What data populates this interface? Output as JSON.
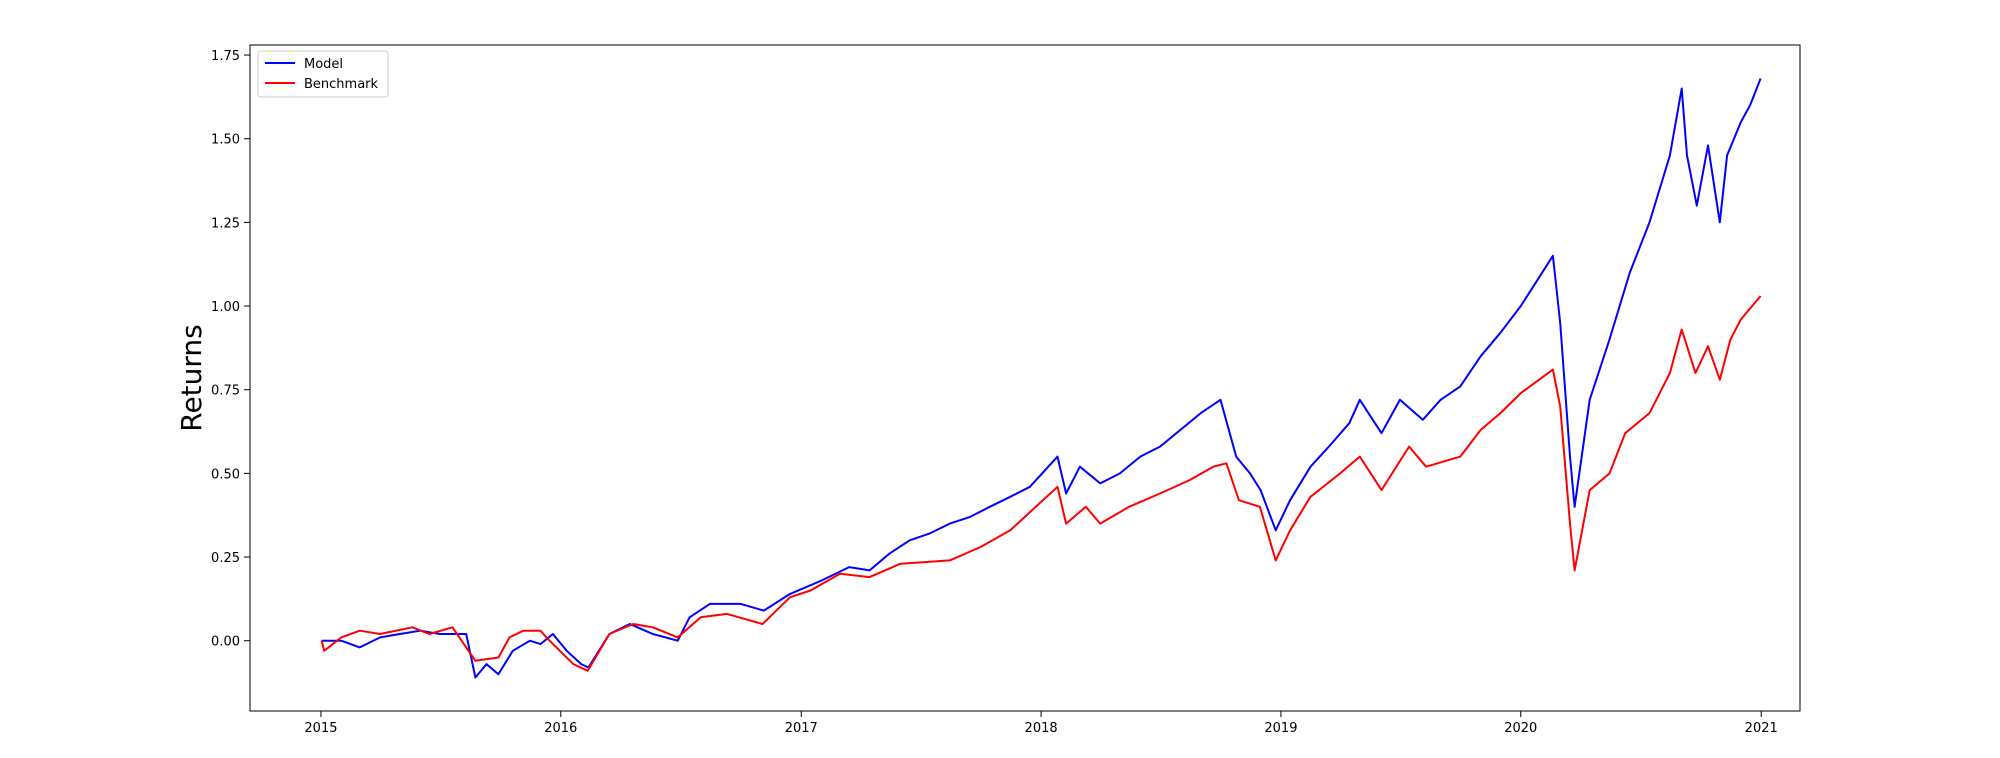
{
  "chart_data": {
    "type": "line",
    "title": "",
    "xlabel": "",
    "ylabel": "Returns",
    "xlim": [
      "2014-09-15",
      "2021-03-01"
    ],
    "ylim": [
      -0.21,
      1.78
    ],
    "x_ticks": [
      "2015",
      "2016",
      "2017",
      "2018",
      "2019",
      "2020",
      "2021"
    ],
    "y_ticks": [
      "0.00",
      "0.25",
      "0.50",
      "0.75",
      "1.00",
      "1.25",
      "1.50",
      "1.75"
    ],
    "y_tick_values": [
      0.0,
      0.25,
      0.5,
      0.75,
      1.0,
      1.25,
      1.5,
      1.75
    ],
    "grid": false,
    "legend_position": "top-left",
    "series": [
      {
        "name": "Model",
        "color": "#0000ff",
        "points": [
          [
            "2015-01-02",
            0.0
          ],
          [
            "2015-02-01",
            0.0
          ],
          [
            "2015-03-01",
            -0.02
          ],
          [
            "2015-04-01",
            0.01
          ],
          [
            "2015-05-01",
            0.02
          ],
          [
            "2015-06-01",
            0.03
          ],
          [
            "2015-07-01",
            0.02
          ],
          [
            "2015-08-10",
            0.02
          ],
          [
            "2015-08-24",
            -0.11
          ],
          [
            "2015-09-10",
            -0.07
          ],
          [
            "2015-09-28",
            -0.1
          ],
          [
            "2015-10-20",
            -0.03
          ],
          [
            "2015-11-15",
            0.0
          ],
          [
            "2015-12-01",
            -0.01
          ],
          [
            "2015-12-20",
            0.02
          ],
          [
            "2016-01-10",
            -0.03
          ],
          [
            "2016-02-01",
            -0.07
          ],
          [
            "2016-02-12",
            -0.08
          ],
          [
            "2016-03-15",
            0.02
          ],
          [
            "2016-04-15",
            0.05
          ],
          [
            "2016-05-20",
            0.02
          ],
          [
            "2016-06-27",
            0.0
          ],
          [
            "2016-07-15",
            0.07
          ],
          [
            "2016-08-15",
            0.11
          ],
          [
            "2016-10-01",
            0.11
          ],
          [
            "2016-11-05",
            0.09
          ],
          [
            "2016-12-15",
            0.14
          ],
          [
            "2017-02-01",
            0.18
          ],
          [
            "2017-03-15",
            0.22
          ],
          [
            "2017-04-15",
            0.21
          ],
          [
            "2017-05-15",
            0.26
          ],
          [
            "2017-06-15",
            0.3
          ],
          [
            "2017-07-15",
            0.32
          ],
          [
            "2017-08-15",
            0.35
          ],
          [
            "2017-09-15",
            0.37
          ],
          [
            "2017-10-15",
            0.4
          ],
          [
            "2017-11-15",
            0.43
          ],
          [
            "2017-12-15",
            0.46
          ],
          [
            "2018-01-26",
            0.55
          ],
          [
            "2018-02-08",
            0.44
          ],
          [
            "2018-03-01",
            0.52
          ],
          [
            "2018-04-01",
            0.47
          ],
          [
            "2018-05-01",
            0.5
          ],
          [
            "2018-06-01",
            0.55
          ],
          [
            "2018-07-01",
            0.58
          ],
          [
            "2018-08-01",
            0.63
          ],
          [
            "2018-09-01",
            0.68
          ],
          [
            "2018-10-01",
            0.72
          ],
          [
            "2018-10-25",
            0.55
          ],
          [
            "2018-11-15",
            0.5
          ],
          [
            "2018-12-01",
            0.45
          ],
          [
            "2018-12-24",
            0.33
          ],
          [
            "2019-01-15",
            0.42
          ],
          [
            "2019-02-15",
            0.52
          ],
          [
            "2019-03-15",
            0.58
          ],
          [
            "2019-04-15",
            0.65
          ],
          [
            "2019-05-01",
            0.72
          ],
          [
            "2019-06-03",
            0.62
          ],
          [
            "2019-07-01",
            0.72
          ],
          [
            "2019-08-05",
            0.66
          ],
          [
            "2019-09-01",
            0.72
          ],
          [
            "2019-10-01",
            0.76
          ],
          [
            "2019-11-01",
            0.85
          ],
          [
            "2019-12-01",
            0.92
          ],
          [
            "2020-01-01",
            1.0
          ],
          [
            "2020-02-19",
            1.15
          ],
          [
            "2020-03-01",
            0.95
          ],
          [
            "2020-03-16",
            0.55
          ],
          [
            "2020-03-23",
            0.4
          ],
          [
            "2020-04-15",
            0.72
          ],
          [
            "2020-05-15",
            0.9
          ],
          [
            "2020-06-15",
            1.1
          ],
          [
            "2020-07-15",
            1.25
          ],
          [
            "2020-08-15",
            1.45
          ],
          [
            "2020-09-02",
            1.65
          ],
          [
            "2020-09-10",
            1.45
          ],
          [
            "2020-09-25",
            1.3
          ],
          [
            "2020-10-12",
            1.48
          ],
          [
            "2020-10-30",
            1.25
          ],
          [
            "2020-11-10",
            1.45
          ],
          [
            "2020-12-01",
            1.55
          ],
          [
            "2020-12-15",
            1.6
          ],
          [
            "2020-12-31",
            1.68
          ]
        ]
      },
      {
        "name": "Benchmark",
        "color": "#ff0000",
        "points": [
          [
            "2015-01-02",
            0.0
          ],
          [
            "2015-01-06",
            -0.03
          ],
          [
            "2015-02-01",
            0.01
          ],
          [
            "2015-03-01",
            0.03
          ],
          [
            "2015-04-01",
            0.02
          ],
          [
            "2015-05-20",
            0.04
          ],
          [
            "2015-06-15",
            0.02
          ],
          [
            "2015-07-20",
            0.04
          ],
          [
            "2015-08-24",
            -0.06
          ],
          [
            "2015-09-28",
            -0.05
          ],
          [
            "2015-10-15",
            0.01
          ],
          [
            "2015-11-05",
            0.03
          ],
          [
            "2015-12-01",
            0.03
          ],
          [
            "2015-12-15",
            0.0
          ],
          [
            "2016-01-20",
            -0.07
          ],
          [
            "2016-02-11",
            -0.09
          ],
          [
            "2016-03-15",
            0.02
          ],
          [
            "2016-04-20",
            0.05
          ],
          [
            "2016-05-20",
            0.04
          ],
          [
            "2016-06-27",
            0.01
          ],
          [
            "2016-08-01",
            0.07
          ],
          [
            "2016-09-10",
            0.08
          ],
          [
            "2016-11-03",
            0.05
          ],
          [
            "2016-12-15",
            0.13
          ],
          [
            "2017-01-15",
            0.15
          ],
          [
            "2017-03-01",
            0.2
          ],
          [
            "2017-04-15",
            0.19
          ],
          [
            "2017-06-01",
            0.23
          ],
          [
            "2017-08-15",
            0.24
          ],
          [
            "2017-10-01",
            0.28
          ],
          [
            "2017-11-15",
            0.33
          ],
          [
            "2018-01-26",
            0.46
          ],
          [
            "2018-02-08",
            0.35
          ],
          [
            "2018-03-10",
            0.4
          ],
          [
            "2018-04-01",
            0.35
          ],
          [
            "2018-05-15",
            0.4
          ],
          [
            "2018-07-01",
            0.44
          ],
          [
            "2018-08-15",
            0.48
          ],
          [
            "2018-09-20",
            0.52
          ],
          [
            "2018-10-10",
            0.53
          ],
          [
            "2018-10-29",
            0.42
          ],
          [
            "2018-11-30",
            0.4
          ],
          [
            "2018-12-24",
            0.24
          ],
          [
            "2019-01-15",
            0.33
          ],
          [
            "2019-02-15",
            0.43
          ],
          [
            "2019-04-01",
            0.5
          ],
          [
            "2019-05-01",
            0.55
          ],
          [
            "2019-06-03",
            0.45
          ],
          [
            "2019-07-15",
            0.58
          ],
          [
            "2019-08-10",
            0.52
          ],
          [
            "2019-10-01",
            0.55
          ],
          [
            "2019-11-01",
            0.63
          ],
          [
            "2019-12-01",
            0.68
          ],
          [
            "2020-01-01",
            0.74
          ],
          [
            "2020-02-19",
            0.81
          ],
          [
            "2020-03-01",
            0.7
          ],
          [
            "2020-03-16",
            0.35
          ],
          [
            "2020-03-23",
            0.21
          ],
          [
            "2020-04-15",
            0.45
          ],
          [
            "2020-05-15",
            0.5
          ],
          [
            "2020-06-08",
            0.62
          ],
          [
            "2020-07-15",
            0.68
          ],
          [
            "2020-08-15",
            0.8
          ],
          [
            "2020-09-02",
            0.93
          ],
          [
            "2020-09-23",
            0.8
          ],
          [
            "2020-10-12",
            0.88
          ],
          [
            "2020-10-30",
            0.78
          ],
          [
            "2020-11-15",
            0.9
          ],
          [
            "2020-12-01",
            0.96
          ],
          [
            "2020-12-31",
            1.03
          ]
        ]
      }
    ]
  }
}
